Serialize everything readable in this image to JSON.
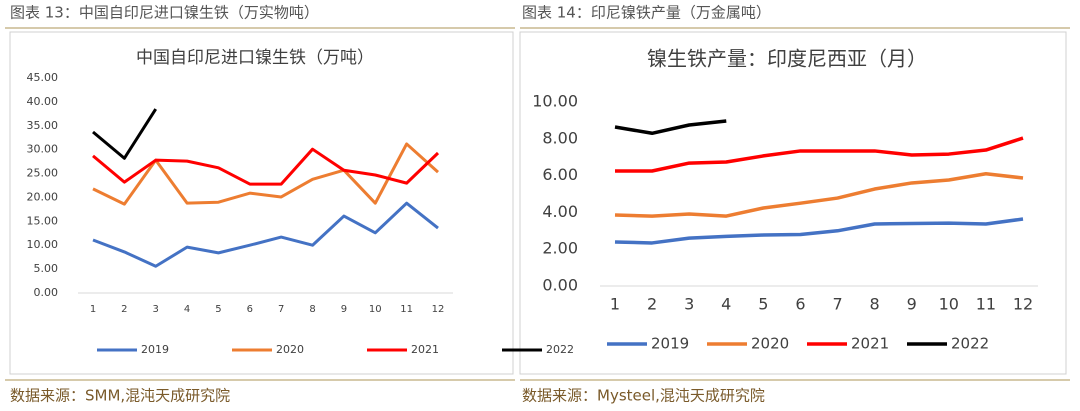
{
  "chart_data": [
    {
      "type": "line",
      "caption": "图表 13：中国自印尼进口镍生铁（万实物吨）",
      "title": "中国自印尼进口镍生铁（万吨）",
      "source": "数据来源：SMM,混沌天成研究院",
      "categories": [
        "1",
        "2",
        "3",
        "4",
        "5",
        "6",
        "7",
        "8",
        "9",
        "10",
        "11",
        "12"
      ],
      "ylim": [
        0,
        45
      ],
      "yticks": [
        {
          "value": 0,
          "label": "0.00"
        },
        {
          "value": 5,
          "label": "5.00"
        },
        {
          "value": 10,
          "label": "10.00"
        },
        {
          "value": 15,
          "label": "15.00"
        },
        {
          "value": 20,
          "label": "20.00"
        },
        {
          "value": 25,
          "label": "25.00"
        },
        {
          "value": 30,
          "label": "30.00"
        },
        {
          "value": 35,
          "label": "35.00"
        },
        {
          "value": 40,
          "label": "40.00"
        },
        {
          "value": 45,
          "label": "45.00"
        }
      ],
      "series": [
        {
          "name": "2019",
          "color": "#4472c4",
          "values": [
            11.1,
            8.6,
            5.6,
            9.6,
            8.4,
            10.0,
            11.7,
            10.0,
            16.1,
            12.6,
            18.8,
            13.6
          ]
        },
        {
          "name": "2020",
          "color": "#ed7d31",
          "values": [
            21.8,
            18.6,
            27.8,
            18.8,
            19.0,
            20.9,
            20.1,
            23.8,
            25.7,
            18.8,
            31.2,
            25.3
          ]
        },
        {
          "name": "2021",
          "color": "#ff0000",
          "values": [
            28.7,
            23.2,
            27.8,
            27.6,
            26.2,
            22.8,
            22.8,
            30.1,
            25.7,
            24.7,
            23.0,
            29.3
          ]
        },
        {
          "name": "2022",
          "color": "#000000",
          "values": [
            33.7,
            28.2,
            38.5,
            null,
            null,
            null,
            null,
            null,
            null,
            null,
            null,
            null
          ]
        }
      ]
    },
    {
      "type": "line",
      "caption": "图表 14：印尼镍铁产量（万金属吨）",
      "title": "镍生铁产量：印度尼西亚（月）",
      "source": "数据来源：Mysteel,混沌天成研究院",
      "categories": [
        "1",
        "2",
        "3",
        "4",
        "5",
        "6",
        "7",
        "8",
        "9",
        "10",
        "11",
        "12"
      ],
      "ylim": [
        0,
        10
      ],
      "yticks": [
        {
          "value": 0,
          "label": "0.00"
        },
        {
          "value": 2,
          "label": "2.00"
        },
        {
          "value": 4,
          "label": "4.00"
        },
        {
          "value": 6,
          "label": "6.00"
        },
        {
          "value": 8,
          "label": "8.00"
        },
        {
          "value": 10,
          "label": "10.00"
        }
      ],
      "series": [
        {
          "name": "2019",
          "color": "#4472c4",
          "values": [
            2.39,
            2.34,
            2.6,
            2.7,
            2.77,
            2.8,
            3.0,
            3.37,
            3.4,
            3.42,
            3.37,
            3.64
          ]
        },
        {
          "name": "2020",
          "color": "#ed7d31",
          "values": [
            3.86,
            3.8,
            3.91,
            3.8,
            4.24,
            4.5,
            4.78,
            5.27,
            5.6,
            5.76,
            6.1,
            5.87
          ]
        },
        {
          "name": "2021",
          "color": "#ff0000",
          "values": [
            6.25,
            6.25,
            6.68,
            6.74,
            7.07,
            7.34,
            7.34,
            7.34,
            7.12,
            7.17,
            7.39,
            8.04
          ]
        },
        {
          "name": "2022",
          "color": "#000000",
          "values": [
            8.64,
            8.3,
            8.75,
            8.97,
            null,
            null,
            null,
            null,
            null,
            null,
            null,
            null
          ]
        }
      ]
    }
  ]
}
